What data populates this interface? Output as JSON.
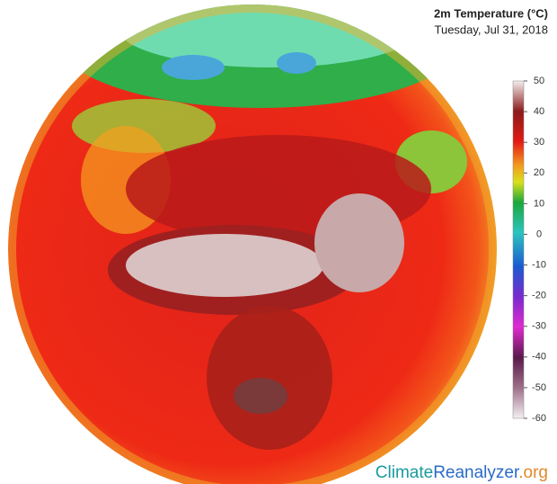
{
  "title": "2m Temperature (°C)",
  "subtitle": "Tuesday, Jul 31, 2018",
  "colorbar": {
    "lim": [
      -60,
      50
    ],
    "ticks": [
      50,
      40,
      30,
      20,
      10,
      0,
      -10,
      -20,
      -30,
      -40,
      -50,
      -60
    ]
  },
  "credit": {
    "parts": [
      "Climate",
      "Reanalyzer",
      ".org"
    ]
  }
}
